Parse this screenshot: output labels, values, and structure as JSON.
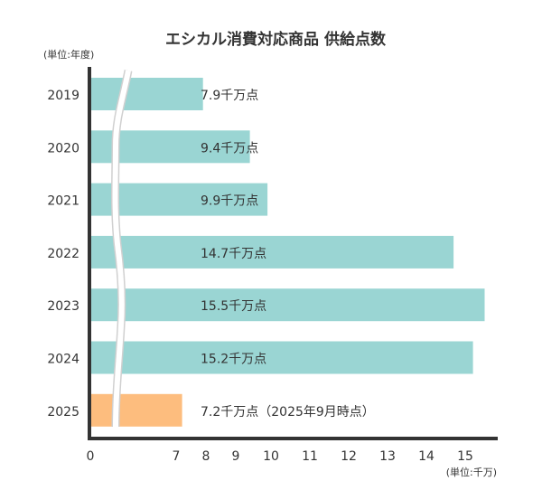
{
  "chart_data": {
    "type": "bar",
    "orientation": "horizontal",
    "title": "エシカル消費対応商品 供給点数",
    "ylabel": "(単位:年度)",
    "xlabel": "(単位:千万)",
    "categories": [
      "2019",
      "2020",
      "2021",
      "2022",
      "2023",
      "2024",
      "2025"
    ],
    "values": [
      7.9,
      9.4,
      9.9,
      14.7,
      15.5,
      15.2,
      7.2
    ],
    "data_labels": [
      "7.9千万点",
      "9.4千万点",
      "9.9千万点",
      "14.7千万点",
      "15.5千万点",
      "15.2千万点",
      "7.2千万点（2025年9月時点）"
    ],
    "x_ticks": [
      "0",
      "7",
      "8",
      "9",
      "10",
      "11",
      "12",
      "13",
      "14",
      "15"
    ],
    "axis_break": true,
    "colors": {
      "default": "#9ad5d3",
      "highlight": "#fdbd7e",
      "axis": "#333333"
    },
    "highlight_category": "2025",
    "grid": false
  }
}
